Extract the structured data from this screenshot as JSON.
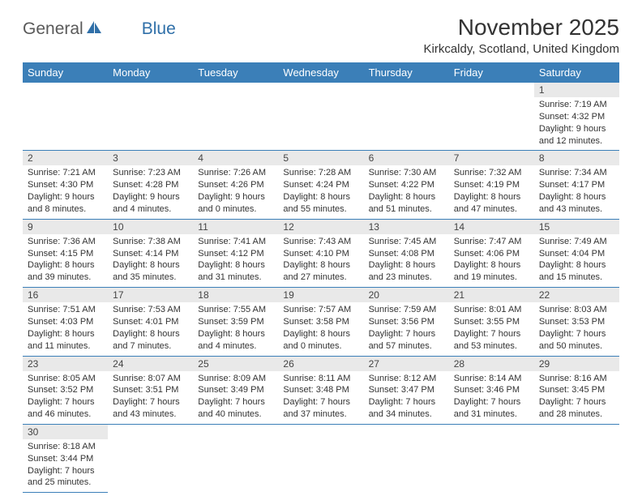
{
  "logo": {
    "text1": "General",
    "text2": "Blue"
  },
  "header": {
    "month_title": "November 2025",
    "location": "Kirkcaldy, Scotland, United Kingdom"
  },
  "colors": {
    "header_bg": "#3b7fb8",
    "header_text": "#ffffff",
    "daynum_bg": "#e9e9e9",
    "border": "#3b7fb8",
    "logo_gray": "#5a5a5a",
    "logo_blue": "#2f6fa8"
  },
  "day_headers": [
    "Sunday",
    "Monday",
    "Tuesday",
    "Wednesday",
    "Thursday",
    "Friday",
    "Saturday"
  ],
  "weeks": [
    [
      null,
      null,
      null,
      null,
      null,
      null,
      {
        "n": "1",
        "sunrise": "Sunrise: 7:19 AM",
        "sunset": "Sunset: 4:32 PM",
        "daylight": "Daylight: 9 hours and 12 minutes."
      }
    ],
    [
      {
        "n": "2",
        "sunrise": "Sunrise: 7:21 AM",
        "sunset": "Sunset: 4:30 PM",
        "daylight": "Daylight: 9 hours and 8 minutes."
      },
      {
        "n": "3",
        "sunrise": "Sunrise: 7:23 AM",
        "sunset": "Sunset: 4:28 PM",
        "daylight": "Daylight: 9 hours and 4 minutes."
      },
      {
        "n": "4",
        "sunrise": "Sunrise: 7:26 AM",
        "sunset": "Sunset: 4:26 PM",
        "daylight": "Daylight: 9 hours and 0 minutes."
      },
      {
        "n": "5",
        "sunrise": "Sunrise: 7:28 AM",
        "sunset": "Sunset: 4:24 PM",
        "daylight": "Daylight: 8 hours and 55 minutes."
      },
      {
        "n": "6",
        "sunrise": "Sunrise: 7:30 AM",
        "sunset": "Sunset: 4:22 PM",
        "daylight": "Daylight: 8 hours and 51 minutes."
      },
      {
        "n": "7",
        "sunrise": "Sunrise: 7:32 AM",
        "sunset": "Sunset: 4:19 PM",
        "daylight": "Daylight: 8 hours and 47 minutes."
      },
      {
        "n": "8",
        "sunrise": "Sunrise: 7:34 AM",
        "sunset": "Sunset: 4:17 PM",
        "daylight": "Daylight: 8 hours and 43 minutes."
      }
    ],
    [
      {
        "n": "9",
        "sunrise": "Sunrise: 7:36 AM",
        "sunset": "Sunset: 4:15 PM",
        "daylight": "Daylight: 8 hours and 39 minutes."
      },
      {
        "n": "10",
        "sunrise": "Sunrise: 7:38 AM",
        "sunset": "Sunset: 4:14 PM",
        "daylight": "Daylight: 8 hours and 35 minutes."
      },
      {
        "n": "11",
        "sunrise": "Sunrise: 7:41 AM",
        "sunset": "Sunset: 4:12 PM",
        "daylight": "Daylight: 8 hours and 31 minutes."
      },
      {
        "n": "12",
        "sunrise": "Sunrise: 7:43 AM",
        "sunset": "Sunset: 4:10 PM",
        "daylight": "Daylight: 8 hours and 27 minutes."
      },
      {
        "n": "13",
        "sunrise": "Sunrise: 7:45 AM",
        "sunset": "Sunset: 4:08 PM",
        "daylight": "Daylight: 8 hours and 23 minutes."
      },
      {
        "n": "14",
        "sunrise": "Sunrise: 7:47 AM",
        "sunset": "Sunset: 4:06 PM",
        "daylight": "Daylight: 8 hours and 19 minutes."
      },
      {
        "n": "15",
        "sunrise": "Sunrise: 7:49 AM",
        "sunset": "Sunset: 4:04 PM",
        "daylight": "Daylight: 8 hours and 15 minutes."
      }
    ],
    [
      {
        "n": "16",
        "sunrise": "Sunrise: 7:51 AM",
        "sunset": "Sunset: 4:03 PM",
        "daylight": "Daylight: 8 hours and 11 minutes."
      },
      {
        "n": "17",
        "sunrise": "Sunrise: 7:53 AM",
        "sunset": "Sunset: 4:01 PM",
        "daylight": "Daylight: 8 hours and 7 minutes."
      },
      {
        "n": "18",
        "sunrise": "Sunrise: 7:55 AM",
        "sunset": "Sunset: 3:59 PM",
        "daylight": "Daylight: 8 hours and 4 minutes."
      },
      {
        "n": "19",
        "sunrise": "Sunrise: 7:57 AM",
        "sunset": "Sunset: 3:58 PM",
        "daylight": "Daylight: 8 hours and 0 minutes."
      },
      {
        "n": "20",
        "sunrise": "Sunrise: 7:59 AM",
        "sunset": "Sunset: 3:56 PM",
        "daylight": "Daylight: 7 hours and 57 minutes."
      },
      {
        "n": "21",
        "sunrise": "Sunrise: 8:01 AM",
        "sunset": "Sunset: 3:55 PM",
        "daylight": "Daylight: 7 hours and 53 minutes."
      },
      {
        "n": "22",
        "sunrise": "Sunrise: 8:03 AM",
        "sunset": "Sunset: 3:53 PM",
        "daylight": "Daylight: 7 hours and 50 minutes."
      }
    ],
    [
      {
        "n": "23",
        "sunrise": "Sunrise: 8:05 AM",
        "sunset": "Sunset: 3:52 PM",
        "daylight": "Daylight: 7 hours and 46 minutes."
      },
      {
        "n": "24",
        "sunrise": "Sunrise: 8:07 AM",
        "sunset": "Sunset: 3:51 PM",
        "daylight": "Daylight: 7 hours and 43 minutes."
      },
      {
        "n": "25",
        "sunrise": "Sunrise: 8:09 AM",
        "sunset": "Sunset: 3:49 PM",
        "daylight": "Daylight: 7 hours and 40 minutes."
      },
      {
        "n": "26",
        "sunrise": "Sunrise: 8:11 AM",
        "sunset": "Sunset: 3:48 PM",
        "daylight": "Daylight: 7 hours and 37 minutes."
      },
      {
        "n": "27",
        "sunrise": "Sunrise: 8:12 AM",
        "sunset": "Sunset: 3:47 PM",
        "daylight": "Daylight: 7 hours and 34 minutes."
      },
      {
        "n": "28",
        "sunrise": "Sunrise: 8:14 AM",
        "sunset": "Sunset: 3:46 PM",
        "daylight": "Daylight: 7 hours and 31 minutes."
      },
      {
        "n": "29",
        "sunrise": "Sunrise: 8:16 AM",
        "sunset": "Sunset: 3:45 PM",
        "daylight": "Daylight: 7 hours and 28 minutes."
      }
    ],
    [
      {
        "n": "30",
        "sunrise": "Sunrise: 8:18 AM",
        "sunset": "Sunset: 3:44 PM",
        "daylight": "Daylight: 7 hours and 25 minutes."
      },
      null,
      null,
      null,
      null,
      null,
      null
    ]
  ]
}
